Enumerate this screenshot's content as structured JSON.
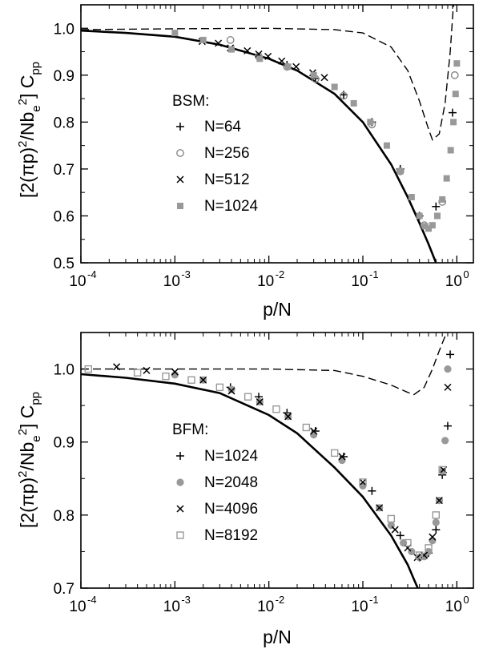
{
  "chart_data": [
    {
      "type": "scatter",
      "xlabel": "p/N",
      "ylabel_parts": [
        "[2(πp)",
        "2",
        "/Nb",
        "e",
        "2",
        "] C",
        "pp"
      ],
      "xscale": "log",
      "xlim": [
        0.0001,
        1.5
      ],
      "ylim": [
        0.5,
        1.05
      ],
      "xticks": [
        {
          "value": 0.0001,
          "base": "10",
          "exp": "-4"
        },
        {
          "value": 0.001,
          "base": "10",
          "exp": "-3"
        },
        {
          "value": 0.01,
          "base": "10",
          "exp": "-2"
        },
        {
          "value": 0.1,
          "base": "10",
          "exp": "-1"
        },
        {
          "value": 1,
          "base": "10",
          "exp": "0"
        }
      ],
      "yticks": [
        {
          "value": 0.5,
          "label": "0.5"
        },
        {
          "value": 0.6,
          "label": "0.6"
        },
        {
          "value": 0.7,
          "label": "0.7"
        },
        {
          "value": 0.8,
          "label": "0.8"
        },
        {
          "value": 0.9,
          "label": "0.9"
        },
        {
          "value": 1.0,
          "label": "1.0"
        }
      ],
      "legend_title": "BSM:",
      "legend_placement": "left",
      "series": [
        {
          "name": "N=64",
          "marker": "plus",
          "color": "#000000",
          "x": [
            0.0156,
            0.0313,
            0.0625,
            0.125,
            0.25,
            0.4,
            0.6,
            0.9
          ],
          "y": [
            0.922,
            0.893,
            0.858,
            0.8,
            0.7,
            0.6,
            0.62,
            0.82
          ]
        },
        {
          "name": "N=256",
          "marker": "circle-open",
          "color": "#888888",
          "x": [
            0.0039,
            0.0078,
            0.0156,
            0.0313,
            0.0625,
            0.125,
            0.25,
            0.45,
            0.7,
            0.95
          ],
          "y": [
            0.975,
            0.94,
            0.918,
            0.892,
            0.856,
            0.795,
            0.695,
            0.58,
            0.63,
            0.9
          ]
        },
        {
          "name": "N=512",
          "marker": "cross",
          "color": "#000000",
          "x": [
            0.00195,
            0.0029,
            0.0039,
            0.0059,
            0.0078,
            0.0098,
            0.0137,
            0.0195,
            0.0293,
            0.039
          ],
          "y": [
            0.972,
            0.968,
            0.958,
            0.952,
            0.945,
            0.94,
            0.93,
            0.918,
            0.905,
            0.895
          ]
        },
        {
          "name": "N=1024",
          "marker": "square-filled",
          "color": "#999999",
          "x": [
            0.001,
            0.002,
            0.004,
            0.008,
            0.016,
            0.03,
            0.05,
            0.08,
            0.12,
            0.18,
            0.25,
            0.33,
            0.4,
            0.46,
            0.5,
            0.55,
            0.62,
            0.7,
            0.78,
            0.86,
            0.92,
            0.97,
            1.0
          ],
          "y": [
            0.99,
            0.975,
            0.955,
            0.935,
            0.918,
            0.9,
            0.875,
            0.84,
            0.8,
            0.75,
            0.695,
            0.64,
            0.6,
            0.578,
            0.573,
            0.58,
            0.6,
            0.635,
            0.68,
            0.74,
            0.8,
            0.86,
            0.925
          ]
        }
      ],
      "curves": [
        {
          "style": "solid",
          "x": [
            0.0001,
            0.0003,
            0.001,
            0.003,
            0.01,
            0.02,
            0.05,
            0.1,
            0.2,
            0.3,
            0.4,
            0.5,
            0.6
          ],
          "y": [
            0.995,
            0.99,
            0.982,
            0.965,
            0.935,
            0.91,
            0.86,
            0.8,
            0.71,
            0.64,
            0.585,
            0.54,
            0.5
          ]
        },
        {
          "style": "dashed",
          "x": [
            0.0001,
            0.001,
            0.01,
            0.05,
            0.1,
            0.2,
            0.3,
            0.4,
            0.5,
            0.55,
            0.65,
            0.75,
            0.85,
            0.92
          ],
          "y": [
            0.997,
            0.999,
            1.0,
            0.997,
            0.99,
            0.96,
            0.91,
            0.845,
            0.785,
            0.762,
            0.775,
            0.84,
            0.95,
            1.05
          ]
        }
      ]
    },
    {
      "type": "scatter",
      "xlabel": "p/N",
      "ylabel_parts": [
        "[2(πp)",
        "2",
        "/Nb",
        "e",
        "2",
        "] C",
        "pp"
      ],
      "xscale": "log",
      "xlim": [
        0.0001,
        1.5
      ],
      "ylim": [
        0.7,
        1.05
      ],
      "xticks": [
        {
          "value": 0.0001,
          "base": "10",
          "exp": "-4"
        },
        {
          "value": 0.001,
          "base": "10",
          "exp": "-3"
        },
        {
          "value": 0.01,
          "base": "10",
          "exp": "-2"
        },
        {
          "value": 0.1,
          "base": "10",
          "exp": "-1"
        },
        {
          "value": 1,
          "base": "10",
          "exp": "0"
        }
      ],
      "yticks": [
        {
          "value": 0.7,
          "label": "0.7"
        },
        {
          "value": 0.8,
          "label": "0.8"
        },
        {
          "value": 0.9,
          "label": "0.9"
        },
        {
          "value": 1.0,
          "label": "1.0"
        }
      ],
      "legend_title": "BFM:",
      "legend_placement": "left",
      "series": [
        {
          "name": "N=1024",
          "marker": "plus",
          "color": "#000000",
          "x": [
            0.0039,
            0.0078,
            0.0156,
            0.0313,
            0.0625,
            0.125,
            0.25,
            0.4,
            0.5,
            0.6,
            0.7,
            0.8,
            0.85
          ],
          "y": [
            0.975,
            0.962,
            0.94,
            0.915,
            0.88,
            0.833,
            0.772,
            0.742,
            0.748,
            0.78,
            0.855,
            0.922,
            1.02
          ]
        },
        {
          "name": "N=2048",
          "marker": "circle-filled",
          "color": "#999999",
          "x": [
            0.001,
            0.002,
            0.004,
            0.008,
            0.016,
            0.03,
            0.06,
            0.1,
            0.15,
            0.2,
            0.27,
            0.33,
            0.4,
            0.45,
            0.5,
            0.55,
            0.6,
            0.65,
            0.7,
            0.75,
            0.8
          ],
          "y": [
            0.992,
            0.985,
            0.972,
            0.955,
            0.935,
            0.91,
            0.875,
            0.84,
            0.81,
            0.786,
            0.762,
            0.75,
            0.742,
            0.743,
            0.75,
            0.765,
            0.79,
            0.82,
            0.86,
            0.902,
            1.0
          ]
        },
        {
          "name": "N=4096",
          "marker": "cross",
          "color": "#000000",
          "x": [
            0.00024,
            0.0005,
            0.001,
            0.002,
            0.004,
            0.008,
            0.016,
            0.03,
            0.06,
            0.1,
            0.15,
            0.22,
            0.3,
            0.38,
            0.45,
            0.55,
            0.65,
            0.72,
            0.8
          ],
          "y": [
            1.003,
            0.998,
            0.996,
            0.985,
            0.97,
            0.955,
            0.935,
            0.915,
            0.88,
            0.845,
            0.81,
            0.78,
            0.755,
            0.742,
            0.745,
            0.77,
            0.82,
            0.862,
            0.975
          ]
        },
        {
          "name": "N=8192",
          "marker": "square-open",
          "color": "#999999",
          "x": [
            0.00012,
            0.0004,
            0.0008,
            0.0015,
            0.003,
            0.006,
            0.012,
            0.025,
            0.05,
            0.1,
            0.2,
            0.3,
            0.4,
            0.5,
            0.6,
            0.7
          ],
          "y": [
            1.0,
            0.995,
            0.99,
            0.985,
            0.975,
            0.962,
            0.945,
            0.92,
            0.885,
            0.845,
            0.795,
            0.762,
            0.745,
            0.755,
            0.8,
            0.862
          ]
        }
      ],
      "curves": [
        {
          "style": "solid",
          "x": [
            0.0001,
            0.0003,
            0.001,
            0.003,
            0.01,
            0.02,
            0.05,
            0.1,
            0.2,
            0.3,
            0.35,
            0.4
          ],
          "y": [
            0.993,
            0.988,
            0.98,
            0.967,
            0.937,
            0.912,
            0.865,
            0.825,
            0.772,
            0.732,
            0.712,
            0.695
          ]
        },
        {
          "style": "dashed",
          "x": [
            0.0001,
            0.001,
            0.01,
            0.05,
            0.1,
            0.2,
            0.3,
            0.35,
            0.45,
            0.55,
            0.65,
            0.75,
            0.85
          ],
          "y": [
            1.0,
            1.0,
            1.0,
            0.998,
            0.99,
            0.978,
            0.968,
            0.965,
            0.975,
            1.0,
            1.025,
            1.045,
            1.06
          ]
        }
      ]
    }
  ]
}
